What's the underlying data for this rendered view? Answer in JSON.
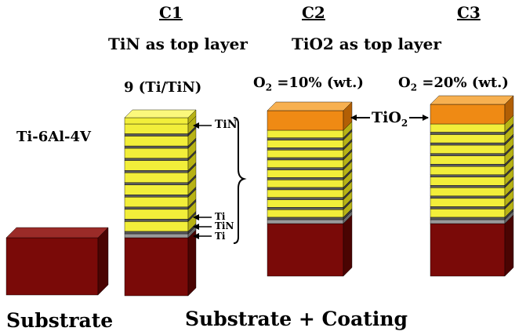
{
  "header": {
    "c1": {
      "label": "C1",
      "desc": "TiN as top layer"
    },
    "c2": {
      "label": "C2"
    },
    "c3": {
      "label": "C3"
    },
    "c23_desc": "TiO2 as top layer"
  },
  "labels": {
    "substrate_material": "Ti-6Al-4V",
    "stack_count": "9 (Ti/TiN)",
    "o2_c2": "O",
    "o2_c2_sub": "2",
    "o2_c2_val": " =10% (wt.)",
    "o2_c3": "O",
    "o2_c3_sub": "2",
    "o2_c3_val": " =20% (wt.)",
    "tin_top": "TiN",
    "ti_1": "Ti",
    "tin_2": "TiN",
    "ti_3": "Ti",
    "tio2": "TiO",
    "tio2_sub": "2"
  },
  "footer": {
    "substrate": "Substrate",
    "substrate_coating": "Substrate + Coating"
  },
  "colors": {
    "substrate_front": "#7a0a08",
    "substrate_top": "#9b2b28",
    "substrate_side": "#4a0402",
    "tin_front": "#f2ee3a",
    "tin_top": "#fbf87c",
    "tin_side": "#b7b215",
    "ti_front": "#5a5a5a",
    "ti_side": "#3a3a3a",
    "base_ti": "#9a9a9a",
    "tio2_front": "#ef8a14",
    "tio2_top": "#f7b050",
    "tio2_side": "#b25f05"
  }
}
